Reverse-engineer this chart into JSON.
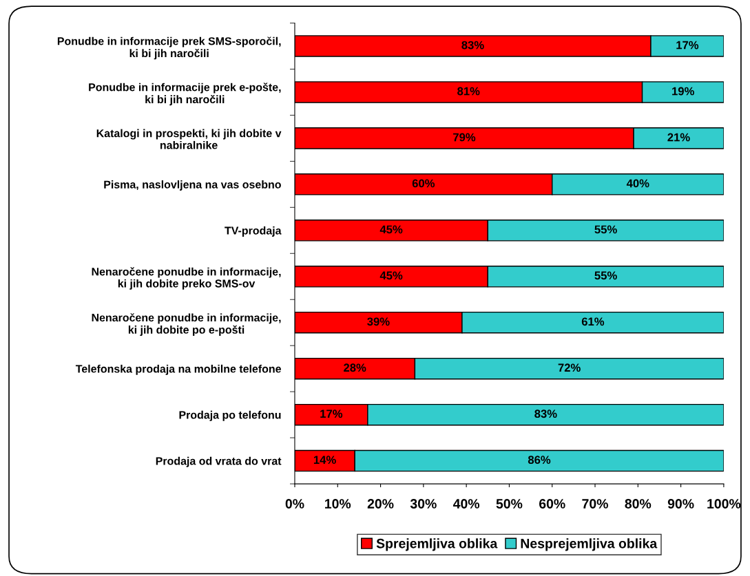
{
  "chart_data": {
    "type": "bar",
    "orientation": "horizontal",
    "stacked": true,
    "categories": [
      "Ponudbe in informacije prek SMS-sporočil,\nki bi jih naročili",
      "Ponudbe in informacije prek e-pošte,\nki bi jih naročili",
      "Katalogi in prospekti, ki jih dobite v\nnabiralnike",
      "Pisma, naslovljena na vas osebno",
      "TV-prodaja",
      "Nenaročene ponudbe in informacije,\nki jih dobite preko SMS-ov",
      "Nenaročene ponudbe in informacije,\nki jih dobite po e-pošti",
      "Telefonska prodaja na mobilne telefone",
      "Prodaja po telefonu",
      "Prodaja od vrata do vrat"
    ],
    "series": [
      {
        "name": "Sprejemljiva oblika",
        "color": "#ff0000",
        "values": [
          83,
          81,
          79,
          60,
          45,
          45,
          39,
          28,
          17,
          14
        ],
        "value_labels": [
          "83%",
          "81%",
          "79%",
          "60%",
          "45%",
          "45%",
          "39%",
          "28%",
          "17%",
          "14%"
        ]
      },
      {
        "name": "Nesprejemljiva oblika",
        "color": "#33cccc",
        "values": [
          17,
          19,
          21,
          40,
          55,
          55,
          61,
          72,
          83,
          86
        ],
        "value_labels": [
          "17%",
          "19%",
          "21%",
          "40%",
          "55%",
          "55%",
          "61%",
          "72%",
          "83%",
          "86%"
        ]
      }
    ],
    "xlim": [
      0,
      100
    ],
    "xticks": [
      {
        "value": 0,
        "label": "0%"
      },
      {
        "value": 10,
        "label": "10%"
      },
      {
        "value": 20,
        "label": "20%"
      },
      {
        "value": 30,
        "label": "30%"
      },
      {
        "value": 40,
        "label": "40%"
      },
      {
        "value": 50,
        "label": "50%"
      },
      {
        "value": 60,
        "label": "60%"
      },
      {
        "value": 70,
        "label": "70%"
      },
      {
        "value": 80,
        "label": "80%"
      },
      {
        "value": 90,
        "label": "90%"
      },
      {
        "value": 100,
        "label": "100%"
      }
    ],
    "grid": false,
    "legend": "bottom"
  }
}
